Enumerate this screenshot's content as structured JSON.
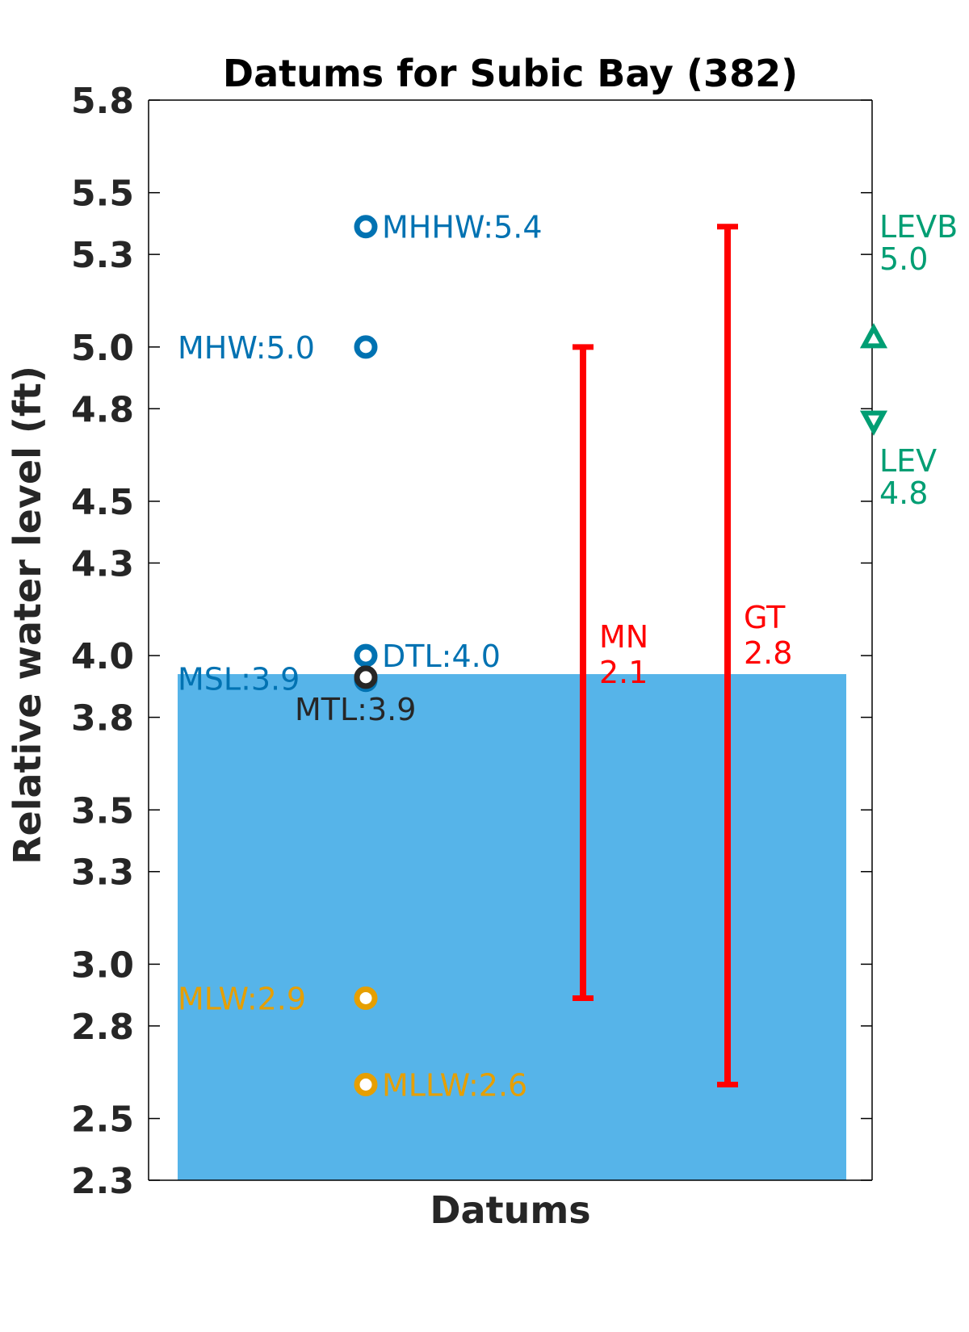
{
  "chart_data": {
    "type": "scatter",
    "title": "Datums for Subic Bay (382)",
    "xlabel": "Datums",
    "ylabel": "Relative water level (ft)",
    "ylim": [
      2.3,
      5.8
    ],
    "yticks": [
      2.3,
      2.5,
      2.8,
      3.0,
      3.3,
      3.5,
      3.8,
      4.0,
      4.3,
      4.5,
      4.8,
      5.0,
      5.3,
      5.5,
      5.8
    ],
    "ytick_labels": [
      "2.3",
      "2.5",
      "2.8",
      "3.0",
      "3.3",
      "3.5",
      "3.8",
      "4.0",
      "4.3",
      "4.5",
      "4.8",
      "5.0",
      "5.3",
      "5.5",
      "5.8"
    ],
    "grid": false,
    "msl_fill": {
      "value": 3.94,
      "color": "#56b4e9"
    },
    "datums": [
      {
        "name": "MHHW",
        "label": "MHHW:5.4",
        "value": 5.39,
        "color": "#0072b2",
        "label_side": "right"
      },
      {
        "name": "MHW",
        "label": "MHW:5.0",
        "value": 5.0,
        "color": "#0072b2",
        "label_side": "left"
      },
      {
        "name": "DTL",
        "label": "DTL:4.0",
        "value": 4.0,
        "color": "#0072b2",
        "label_side": "right"
      },
      {
        "name": "MSL",
        "label": "MSL:3.9",
        "value": 3.92,
        "color": "#0072b2",
        "label_side": "left"
      },
      {
        "name": "MTL",
        "label": "MTL:3.9",
        "value": 3.93,
        "color": "#262626",
        "label_side": "below"
      },
      {
        "name": "MLW",
        "label": "MLW:2.9",
        "value": 2.89,
        "color": "#e69f00",
        "label_side": "left"
      },
      {
        "name": "MLLW",
        "label": "MLLW:2.6",
        "value": 2.61,
        "color": "#e69f00",
        "label_side": "right"
      }
    ],
    "ranges": [
      {
        "name": "MN",
        "label_lines": [
          "MN",
          "2.1"
        ],
        "low": 2.89,
        "high": 5.0,
        "color": "#ff0000"
      },
      {
        "name": "GT",
        "label_lines": [
          "GT",
          "2.8"
        ],
        "low": 2.61,
        "high": 5.39,
        "color": "#ff0000"
      }
    ],
    "extremes": [
      {
        "name": "LEVB",
        "label_lines": [
          "LEVB",
          "5.0"
        ],
        "value": 5.03,
        "marker": "triangle-up",
        "color": "#009e73"
      },
      {
        "name": "LEV",
        "label_lines": [
          "LEV",
          "4.8"
        ],
        "value": 4.76,
        "marker": "triangle-down",
        "color": "#009e73"
      }
    ]
  }
}
